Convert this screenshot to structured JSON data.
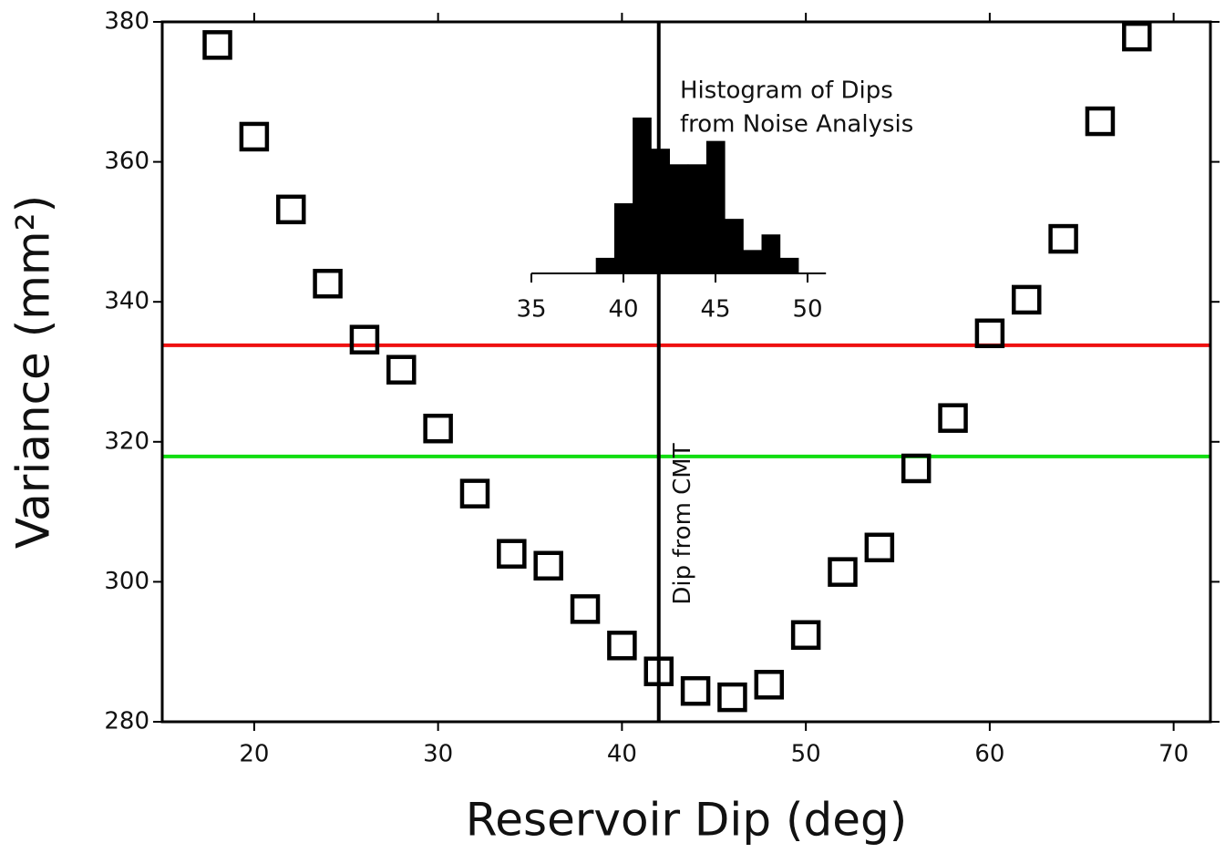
{
  "chart_data": [
    {
      "type": "scatter",
      "x_label": "Reservoir Dip (deg)",
      "y_label": "Variance (mm²)",
      "x": [
        18,
        20,
        22,
        24,
        26,
        28,
        30,
        32,
        34,
        36,
        38,
        40,
        42,
        44,
        46,
        48,
        50,
        52,
        54,
        56,
        58,
        60,
        62,
        64,
        66,
        68
      ],
      "values": [
        376.7,
        363.6,
        353.2,
        342.6,
        334.6,
        330.3,
        321.9,
        312.6,
        304.0,
        302.3,
        296.1,
        290.9,
        287.2,
        284.4,
        283.5,
        285.3,
        292.4,
        301.4,
        304.9,
        316.2,
        323.4,
        335.5,
        340.3,
        349.0,
        365.8,
        377.9
      ],
      "color": "#000000",
      "xlim": [
        15,
        72
      ],
      "ylim": [
        280,
        380
      ],
      "xticks": [
        20,
        30,
        40,
        50,
        60,
        70
      ],
      "yticks": [
        280,
        300,
        320,
        340,
        360,
        380
      ],
      "hlines": [
        {
          "value": 333.8,
          "color": "#ee1111"
        },
        {
          "value": 317.9,
          "color": "#11dd11"
        }
      ],
      "vlines": [
        {
          "value": 42,
          "label": "Dip from CMT",
          "color": "#000000"
        }
      ]
    },
    {
      "type": "histogram",
      "title": [
        "Histogram of Dips",
        "from Noise Analysis"
      ],
      "bins": [
        38.5,
        39.5,
        40.5,
        41.5,
        42.5,
        43.5,
        44.5,
        45.5,
        46.5,
        47.5,
        48.5,
        49.5
      ],
      "counts": [
        2,
        9,
        20,
        16,
        14,
        14,
        17,
        7,
        3,
        5,
        2
      ],
      "color": "#000000",
      "xlim": [
        35,
        51
      ],
      "ylim": [
        0,
        20
      ],
      "xticks": [
        35,
        40,
        45,
        50
      ]
    }
  ]
}
